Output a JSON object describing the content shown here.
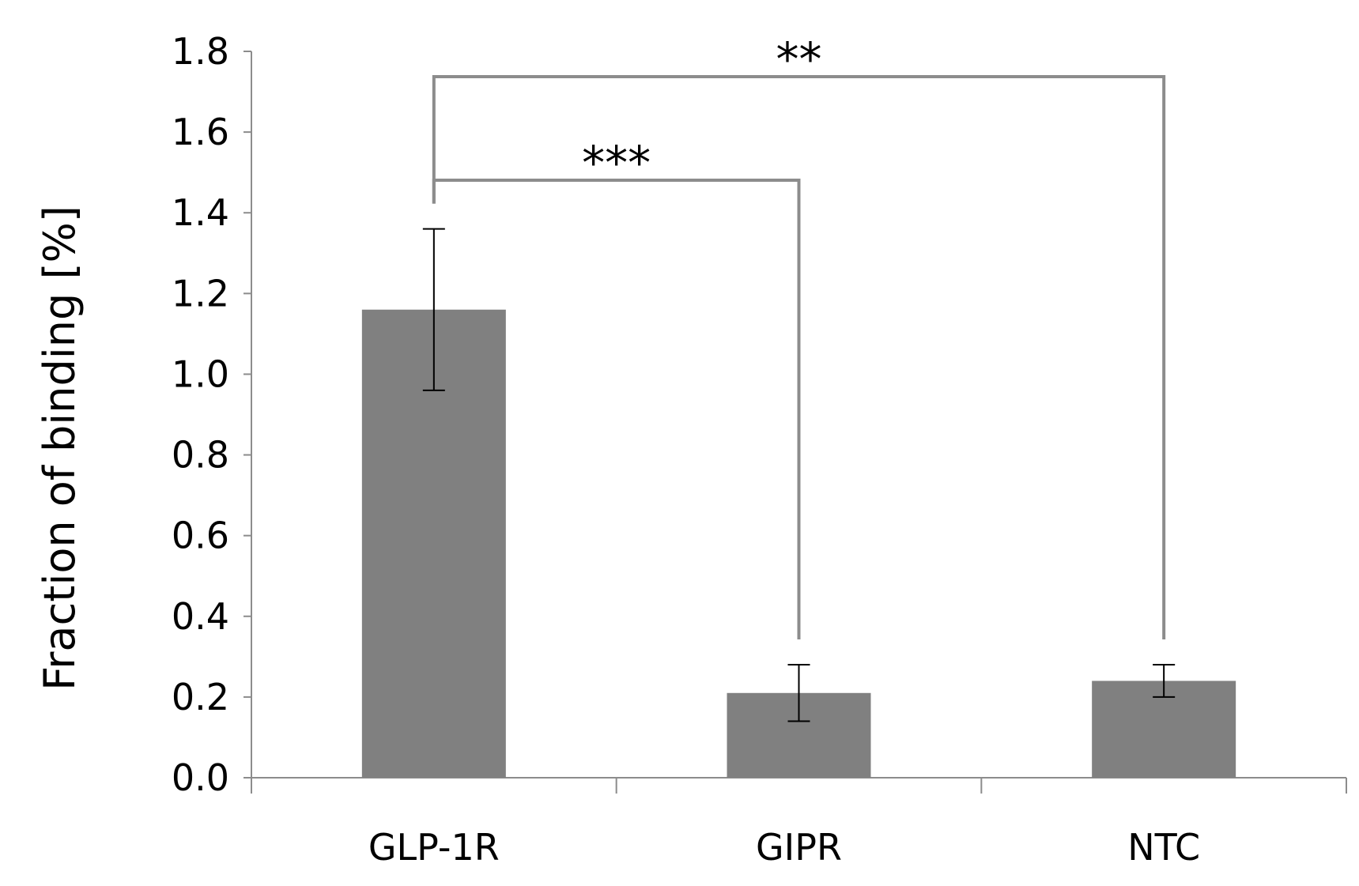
{
  "chart_data": {
    "type": "bar",
    "ylabel": "Fraction of binding [%]",
    "ylim": [
      0,
      1.8
    ],
    "yticks": [
      "0.0",
      "0.2",
      "0.4",
      "0.6",
      "0.8",
      "1.0",
      "1.2",
      "1.4",
      "1.6",
      "1.8"
    ],
    "categories": [
      "GLP-1R",
      "GIPR",
      "NTC"
    ],
    "values": [
      1.16,
      0.21,
      0.24
    ],
    "errors": [
      0.2,
      0.07,
      0.04
    ],
    "bar_color": "#808080",
    "grid": false,
    "significance": [
      {
        "from": "GLP-1R",
        "to": "GIPR",
        "label": "***"
      },
      {
        "from": "GLP-1R",
        "to": "NTC",
        "label": "**"
      }
    ]
  }
}
